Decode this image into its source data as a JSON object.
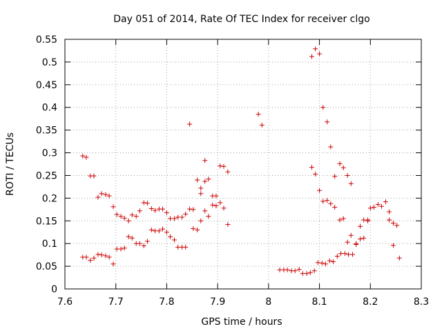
{
  "chart_data": {
    "type": "scatter",
    "title": "Day 051 of 2014, Rate Of TEC Index for receiver clgo",
    "xlabel": "GPS time / hours",
    "ylabel": "ROTI / TECUs",
    "xlim": [
      7.6,
      8.3
    ],
    "ylim": [
      0,
      0.55
    ],
    "xticks": [
      "7.6",
      "7.7",
      "7.8",
      "7.9",
      "8",
      "8.1",
      "8.2",
      "8.3"
    ],
    "yticks": [
      "0",
      "0.05",
      "0.1",
      "0.15",
      "0.2",
      "0.25",
      "0.3",
      "0.35",
      "0.4",
      "0.45",
      "0.5",
      "0.55"
    ],
    "grid": true,
    "marker": "+",
    "color": "#cc0000",
    "series": [
      {
        "name": "ROTI",
        "points": [
          [
            7.635,
            0.293
          ],
          [
            7.642,
            0.29
          ],
          [
            7.65,
            0.249
          ],
          [
            7.657,
            0.249
          ],
          [
            7.665,
            0.202
          ],
          [
            7.672,
            0.21
          ],
          [
            7.68,
            0.208
          ],
          [
            7.687,
            0.205
          ],
          [
            7.695,
            0.181
          ],
          [
            7.702,
            0.164
          ],
          [
            7.71,
            0.16
          ],
          [
            7.717,
            0.156
          ],
          [
            7.725,
            0.15
          ],
          [
            7.732,
            0.163
          ],
          [
            7.74,
            0.16
          ],
          [
            7.747,
            0.172
          ],
          [
            7.755,
            0.19
          ],
          [
            7.762,
            0.189
          ],
          [
            7.77,
            0.177
          ],
          [
            7.777,
            0.173
          ],
          [
            7.785,
            0.176
          ],
          [
            7.792,
            0.176
          ],
          [
            7.8,
            0.168
          ],
          [
            7.807,
            0.155
          ],
          [
            7.815,
            0.155
          ],
          [
            7.822,
            0.158
          ],
          [
            7.83,
            0.158
          ],
          [
            7.837,
            0.165
          ],
          [
            7.845,
            0.176
          ],
          [
            7.852,
            0.175
          ],
          [
            7.86,
            0.24
          ],
          [
            7.867,
            0.222
          ],
          [
            7.875,
            0.237
          ],
          [
            7.882,
            0.242
          ],
          [
            7.89,
            0.205
          ],
          [
            7.897,
            0.205
          ],
          [
            7.905,
            0.271
          ],
          [
            7.912,
            0.27
          ],
          [
            7.92,
            0.258
          ],
          [
            7.635,
            0.07
          ],
          [
            7.642,
            0.07
          ],
          [
            7.65,
            0.063
          ],
          [
            7.657,
            0.068
          ],
          [
            7.665,
            0.076
          ],
          [
            7.672,
            0.075
          ],
          [
            7.68,
            0.073
          ],
          [
            7.687,
            0.07
          ],
          [
            7.695,
            0.055
          ],
          [
            7.702,
            0.088
          ],
          [
            7.71,
            0.088
          ],
          [
            7.717,
            0.09
          ],
          [
            7.725,
            0.115
          ],
          [
            7.732,
            0.112
          ],
          [
            7.74,
            0.1
          ],
          [
            7.747,
            0.1
          ],
          [
            7.755,
            0.095
          ],
          [
            7.762,
            0.105
          ],
          [
            7.77,
            0.13
          ],
          [
            7.777,
            0.128
          ],
          [
            7.785,
            0.128
          ],
          [
            7.792,
            0.132
          ],
          [
            7.8,
            0.125
          ],
          [
            7.807,
            0.115
          ],
          [
            7.815,
            0.108
          ],
          [
            7.822,
            0.092
          ],
          [
            7.83,
            0.092
          ],
          [
            7.837,
            0.092
          ],
          [
            7.845,
            0.363
          ],
          [
            7.852,
            0.133
          ],
          [
            7.86,
            0.13
          ],
          [
            7.867,
            0.21
          ],
          [
            7.867,
            0.15
          ],
          [
            7.875,
            0.283
          ],
          [
            7.875,
            0.172
          ],
          [
            7.882,
            0.16
          ],
          [
            7.89,
            0.185
          ],
          [
            7.897,
            0.183
          ],
          [
            7.905,
            0.19
          ],
          [
            7.912,
            0.178
          ],
          [
            7.92,
            0.142
          ],
          [
            7.98,
            0.385
          ],
          [
            7.987,
            0.361
          ],
          [
            8.022,
            0.042
          ],
          [
            8.03,
            0.042
          ],
          [
            8.037,
            0.042
          ],
          [
            8.045,
            0.04
          ],
          [
            8.052,
            0.04
          ],
          [
            8.06,
            0.043
          ],
          [
            8.067,
            0.034
          ],
          [
            8.075,
            0.034
          ],
          [
            8.082,
            0.036
          ],
          [
            8.09,
            0.04
          ],
          [
            8.097,
            0.058
          ],
          [
            8.105,
            0.057
          ],
          [
            8.112,
            0.055
          ],
          [
            8.12,
            0.062
          ],
          [
            8.127,
            0.06
          ],
          [
            8.135,
            0.072
          ],
          [
            8.142,
            0.078
          ],
          [
            8.15,
            0.078
          ],
          [
            8.157,
            0.076
          ],
          [
            8.165,
            0.076
          ],
          [
            8.172,
            0.1
          ],
          [
            8.18,
            0.11
          ],
          [
            8.187,
            0.112
          ],
          [
            8.195,
            0.15
          ],
          [
            8.085,
            0.512
          ],
          [
            8.092,
            0.529
          ],
          [
            8.1,
            0.518
          ],
          [
            8.107,
            0.4
          ],
          [
            8.115,
            0.368
          ],
          [
            8.122,
            0.313
          ],
          [
            8.085,
            0.268
          ],
          [
            8.092,
            0.253
          ],
          [
            8.1,
            0.217
          ],
          [
            8.107,
            0.193
          ],
          [
            8.115,
            0.195
          ],
          [
            8.122,
            0.188
          ],
          [
            8.13,
            0.248
          ],
          [
            8.13,
            0.18
          ],
          [
            8.14,
            0.276
          ],
          [
            8.147,
            0.267
          ],
          [
            8.155,
            0.25
          ],
          [
            8.162,
            0.232
          ],
          [
            8.14,
            0.152
          ],
          [
            8.147,
            0.155
          ],
          [
            8.155,
            0.103
          ],
          [
            8.162,
            0.118
          ],
          [
            8.172,
            0.098
          ],
          [
            8.18,
            0.138
          ],
          [
            8.187,
            0.152
          ],
          [
            8.195,
            0.152
          ],
          [
            8.2,
            0.178
          ],
          [
            8.207,
            0.18
          ],
          [
            8.215,
            0.186
          ],
          [
            8.222,
            0.182
          ],
          [
            8.23,
            0.192
          ],
          [
            8.237,
            0.17
          ],
          [
            8.237,
            0.152
          ],
          [
            8.245,
            0.145
          ],
          [
            8.245,
            0.096
          ],
          [
            8.252,
            0.14
          ],
          [
            8.257,
            0.068
          ]
        ]
      }
    ]
  }
}
